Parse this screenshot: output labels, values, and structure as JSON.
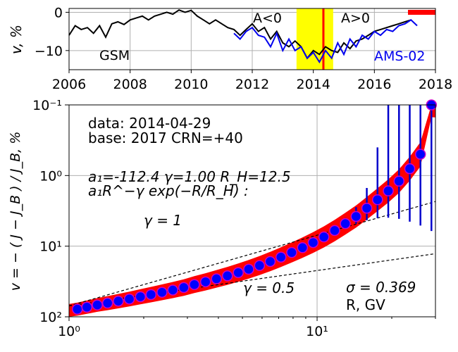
{
  "chart_data": [
    {
      "type": "line",
      "ylabel": "v, %",
      "xlim": [
        2006,
        2018
      ],
      "ylim": [
        -15,
        1
      ],
      "x_ticks": [
        2006,
        2008,
        2010,
        2012,
        2014,
        2016,
        2018
      ],
      "y_ticks": [
        0,
        -10
      ],
      "x_tick_labels": [
        "2006",
        "2008",
        "2010",
        "2012",
        "2014",
        "2016",
        "2018"
      ],
      "y_tick_labels": [
        "0",
        "−10"
      ],
      "grid": true,
      "series": [
        {
          "name": "GSM",
          "color": "#000000",
          "x": [
            2006.0,
            2006.2,
            2006.4,
            2006.6,
            2006.8,
            2007.0,
            2007.2,
            2007.4,
            2007.6,
            2007.8,
            2008.0,
            2008.2,
            2008.4,
            2008.6,
            2008.8,
            2009.0,
            2009.2,
            2009.4,
            2009.6,
            2009.8,
            2010.0,
            2010.2,
            2010.4,
            2010.6,
            2010.8,
            2011.0,
            2011.2,
            2011.4,
            2011.6,
            2011.8,
            2012.0,
            2012.2,
            2012.4,
            2012.6,
            2012.8,
            2013.0,
            2013.2,
            2013.4,
            2013.6,
            2013.8,
            2014.0,
            2014.2,
            2014.4,
            2014.6,
            2014.8,
            2015.0,
            2015.2,
            2015.4,
            2015.6,
            2015.8,
            2016.0,
            2016.2,
            2016.4,
            2016.6,
            2016.8,
            2017.0,
            2017.2
          ],
          "values": [
            -6,
            -3.5,
            -4.5,
            -4,
            -5.5,
            -3.5,
            -6.5,
            -3,
            -2.5,
            -3.2,
            -2,
            -1.5,
            -1,
            -2,
            -1,
            -0.5,
            0,
            -0.5,
            0.6,
            0,
            0.5,
            -1,
            -2,
            -3,
            -2,
            -3,
            -4,
            -4.5,
            -6,
            -4.5,
            -3,
            -5,
            -4,
            -7,
            -5,
            -8,
            -9,
            -7.5,
            -9,
            -12,
            -10,
            -11,
            -9,
            -10,
            -10.5,
            -8,
            -9.5,
            -7.5,
            -7,
            -6,
            -5,
            -4.5,
            -4,
            -3.5,
            -3,
            -2.5,
            -2
          ]
        },
        {
          "name": "AMS-02",
          "color": "#0000ee",
          "x": [
            2011.4,
            2011.6,
            2011.8,
            2012.0,
            2012.2,
            2012.4,
            2012.6,
            2012.8,
            2013.0,
            2013.2,
            2013.4,
            2013.6,
            2013.8,
            2014.0,
            2014.2,
            2014.4,
            2014.6,
            2014.8,
            2015.0,
            2015.2,
            2015.4,
            2015.6,
            2015.8,
            2016.0,
            2016.2,
            2016.4,
            2016.6,
            2016.8,
            2017.0,
            2017.2,
            2017.4
          ],
          "values": [
            -5.5,
            -7,
            -5,
            -4,
            -6,
            -6.5,
            -9,
            -5.5,
            -10,
            -7,
            -10,
            -9,
            -12,
            -10.5,
            -13,
            -10,
            -12,
            -8,
            -11,
            -7,
            -9,
            -6,
            -7,
            -5,
            -6,
            -4.5,
            -5,
            -3.5,
            -3,
            -2,
            -3.5
          ]
        }
      ],
      "highlight_band": {
        "x": [
          2013.45,
          2014.65
        ],
        "color": "#ffff00"
      },
      "marker_line": {
        "x": 2014.33,
        "color": "#ff0000"
      },
      "corner_marker": {
        "x": [
          2017.1,
          2018
        ],
        "y": 0,
        "color": "#ff0000"
      },
      "annotations": {
        "gsm": "GSM",
        "ams": "AMS-02",
        "a_neg": "A<0",
        "a_pos": "A>0"
      }
    },
    {
      "type": "scatter",
      "ylabel": "v = − ( J − J_B ) / J_B, %",
      "xlabel": "R, GV",
      "x_scale": "log",
      "y_scale": "log",
      "y_inverted": true,
      "xlim": [
        1,
        30
      ],
      "ylim": [
        0.1,
        100
      ],
      "x_ticks": [
        1,
        10
      ],
      "y_ticks": [
        0.1,
        1,
        10,
        100
      ],
      "x_tick_labels": [
        "10⁰",
        "10¹"
      ],
      "y_tick_labels": [
        "10⁻¹",
        "10⁰",
        "10¹",
        "10²"
      ],
      "grid": true,
      "points": {
        "R": [
          1.08,
          1.18,
          1.3,
          1.43,
          1.58,
          1.75,
          1.94,
          2.14,
          2.37,
          2.62,
          2.9,
          3.2,
          3.55,
          3.93,
          4.35,
          4.81,
          5.3,
          5.86,
          6.47,
          7.15,
          7.9,
          8.73,
          9.64,
          10.65,
          11.77,
          13.0,
          14.36,
          15.86,
          17.52,
          19.36,
          21.39,
          23.63,
          26.1,
          28.9
        ],
        "v": [
          78.0,
          73.0,
          68.0,
          64.0,
          60.0,
          56.0,
          52.0,
          48.5,
          45.0,
          41.8,
          38.5,
          35.0,
          32.0,
          29.0,
          26.3,
          23.7,
          21.2,
          18.8,
          16.5,
          14.3,
          12.3,
          10.5,
          8.9,
          7.4,
          6.0,
          4.8,
          3.8,
          2.9,
          2.2,
          1.65,
          1.2,
          0.8,
          0.5,
          0.1
        ],
        "v_err": [
          0.2,
          0.2,
          0.2,
          0.2,
          0.2,
          0.2,
          0.2,
          0.2,
          0.2,
          0.2,
          0.2,
          0.2,
          0.2,
          0.2,
          0.2,
          0.2,
          0.2,
          0.2,
          0.2,
          0.2,
          0.3,
          0.3,
          0.3,
          0.5,
          0.6,
          0.8,
          1.0,
          1.4,
          1.8,
          2.3,
          2.9,
          3.7,
          4.6,
          6.0
        ]
      },
      "fit_band": {
        "color": "#ff0000"
      },
      "reference_lines": [
        {
          "label": "γ = 1",
          "slope": 1,
          "v_at_R1": 70
        },
        {
          "label": "γ = 0.5",
          "slope": 0.5,
          "v_at_R1": 70
        }
      ],
      "point_color": "#0000ff",
      "point_edge_color": "#cc00cc",
      "errorbar_color": "#0000cc"
    }
  ],
  "text": {
    "date_line": "data: 2014-04-29",
    "base_line": "base: 2017   CRN=+40",
    "fit_params": "a₁=-112.4  γ=1.00  R_H=12.5",
    "fit_formula": "a₁R^−γ exp(−R/R_H) :",
    "gamma1_label": "γ = 1",
    "gamma05_label": "γ = 0.5",
    "sigma_label": "σ = 0.369",
    "xlabel": "R, GV"
  }
}
